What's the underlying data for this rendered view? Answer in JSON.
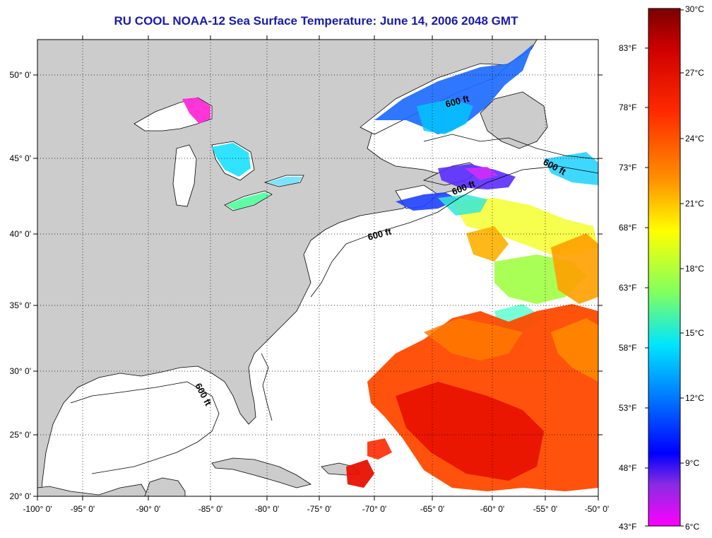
{
  "title": "RU COOL  NOAA-12  Sea Surface Temperature:  June 14, 2006 2048 GMT",
  "lon_ticks": [
    "-100° 0'",
    "-95° 0'",
    "-90° 0'",
    "-85° 0'",
    "-80° 0'",
    "-75° 0'",
    "-70° 0'",
    "-65° 0'",
    "-60° 0'",
    "-55° 0'",
    "-50° 0'"
  ],
  "lat_ticks": [
    "20° 0'",
    "25° 0'",
    "30° 0'",
    "35° 0'",
    "40° 0'",
    "45° 0'",
    "50° 0'"
  ],
  "contour_labels": [
    "600 ft",
    "600 ft",
    "600 ft",
    "600 ft",
    "600 ft"
  ],
  "colorbar": {
    "celsius": [
      "30°C",
      "27°C",
      "24°C",
      "21°C",
      "18°C",
      "15°C",
      "12°C",
      "9°C",
      "6°C"
    ],
    "fahrenheit": [
      "83°F",
      "78°F",
      "73°F",
      "68°F",
      "63°F",
      "58°F",
      "53°F",
      "48°F",
      "43°F"
    ],
    "colors": [
      "#8b0000",
      "#ff1a00",
      "#ff8c00",
      "#ffff00",
      "#7fff60",
      "#00e5ff",
      "#0060ff",
      "#0000ff",
      "#a020f0",
      "#ff00ff"
    ]
  },
  "colors": {
    "land": "#cccccc",
    "title": "#1a1aa8",
    "ocean": "#ffffff"
  }
}
